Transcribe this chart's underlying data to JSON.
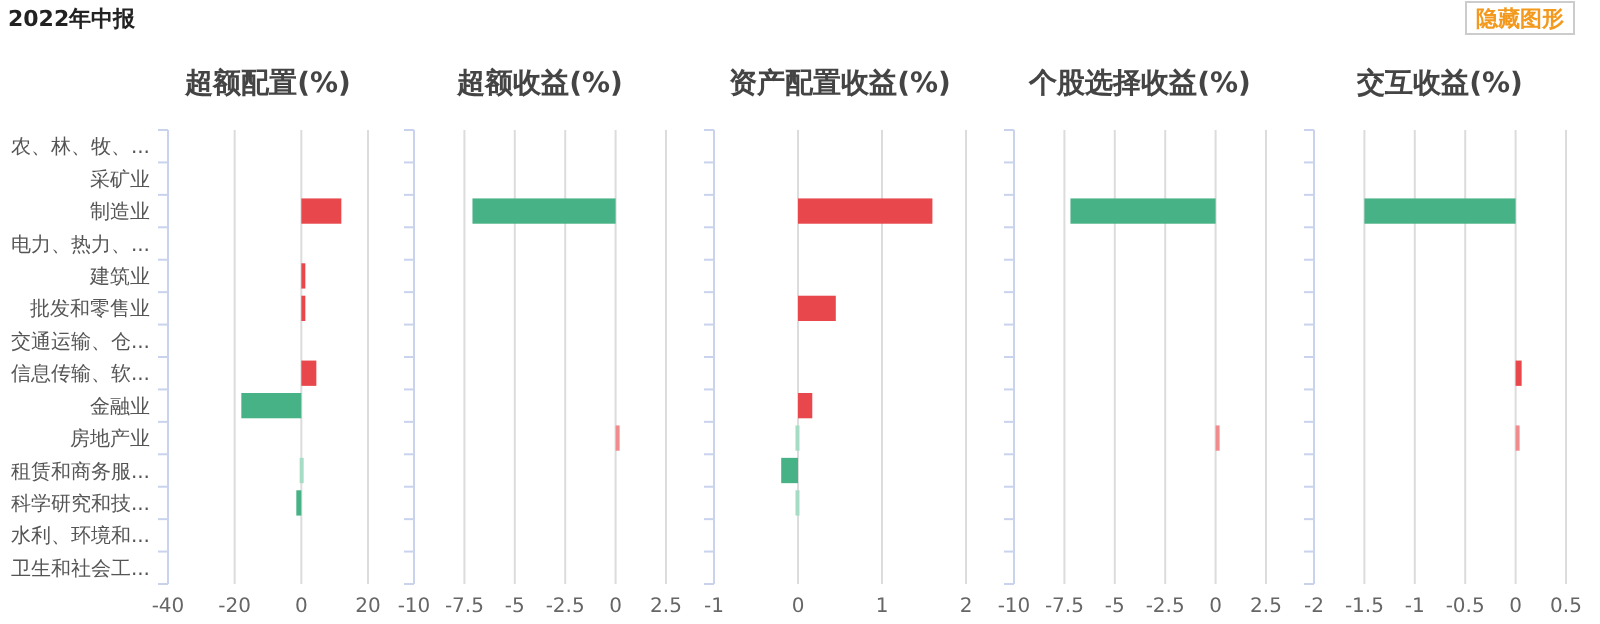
{
  "chart_data": [
    {
      "type": "bar",
      "orientation": "horizontal",
      "title": "超额配置(%)",
      "annotations": [
        "2022年中报"
      ],
      "tick_labels": "xy",
      "grid": "x",
      "categories": [
        "农、林、牧、...",
        "采矿业",
        "制造业",
        "电力、热力、...",
        "建筑业",
        "批发和零售业",
        "交通运输、仓...",
        "信息传输、软...",
        "金融业",
        "房地产业",
        "租赁和商务服...",
        "科学研究和技...",
        "水利、环境和...",
        "卫生和社会工..."
      ],
      "values": [
        null,
        null,
        12,
        null,
        1,
        1,
        null,
        4.5,
        -18,
        null,
        -0.5,
        -1.5,
        null,
        null
      ],
      "colors": [
        null,
        null,
        "#e8474b",
        null,
        "#e8474b",
        "#e8474b",
        null,
        "#e8474b",
        "#48b287",
        null,
        "#a6dcc5",
        "#48b287",
        null,
        null
      ],
      "xlim": [
        -40,
        20
      ],
      "xticks": [
        -40,
        -20,
        0,
        20
      ]
    },
    {
      "type": "bar",
      "orientation": "horizontal",
      "title": "超额收益(%)",
      "tick_labels": "x",
      "grid": "x",
      "categories": [
        null,
        null,
        null,
        null,
        null,
        null,
        null,
        null,
        null,
        null,
        null,
        null,
        null,
        null
      ],
      "values": [
        null,
        null,
        -7.1,
        null,
        null,
        null,
        null,
        null,
        null,
        0.2,
        null,
        null,
        null,
        null
      ],
      "colors": [
        null,
        null,
        "#48b287",
        null,
        null,
        null,
        null,
        null,
        null,
        "#f08c8e",
        null,
        null,
        null,
        null
      ],
      "xlim": [
        -10,
        2.5
      ],
      "xticks": [
        -10,
        -7.5,
        -5,
        -2.5,
        0,
        2.5
      ]
    },
    {
      "type": "bar",
      "orientation": "horizontal",
      "title": "资产配置收益(%)",
      "tick_labels": "x",
      "grid": "x",
      "categories": [
        null,
        null,
        null,
        null,
        null,
        null,
        null,
        null,
        null,
        null,
        null,
        null,
        null,
        null
      ],
      "values": [
        null,
        null,
        1.6,
        null,
        null,
        0.45,
        null,
        null,
        0.17,
        -0.03,
        -0.2,
        -0.03,
        null,
        null
      ],
      "colors": [
        null,
        null,
        "#e8474b",
        null,
        null,
        "#e8474b",
        null,
        null,
        "#e8474b",
        "#a6dcc5",
        "#48b287",
        "#a6dcc5",
        null,
        null
      ],
      "xlim": [
        -1,
        2
      ],
      "xticks": [
        -1,
        0,
        1,
        2
      ]
    },
    {
      "type": "bar",
      "orientation": "horizontal",
      "title": "个股选择收益(%)",
      "tick_labels": "x",
      "grid": "x",
      "categories": [
        null,
        null,
        null,
        null,
        null,
        null,
        null,
        null,
        null,
        null,
        null,
        null,
        null,
        null
      ],
      "values": [
        null,
        null,
        -7.2,
        null,
        null,
        null,
        null,
        null,
        null,
        0.1,
        null,
        null,
        null,
        null
      ],
      "colors": [
        null,
        null,
        "#48b287",
        null,
        null,
        null,
        null,
        null,
        null,
        "#f08c8e",
        null,
        null,
        null,
        null
      ],
      "xlim": [
        -10,
        2.5
      ],
      "xticks": [
        -10,
        -7.5,
        -5,
        -2.5,
        0,
        2.5
      ]
    },
    {
      "type": "bar",
      "orientation": "horizontal",
      "title": "交互收益(%)",
      "annotations": [
        "隐藏图形"
      ],
      "tick_labels": "x",
      "grid": "x",
      "categories": [
        null,
        null,
        null,
        null,
        null,
        null,
        null,
        null,
        null,
        null,
        null,
        null,
        null,
        null
      ],
      "values": [
        null,
        null,
        -1.5,
        null,
        null,
        null,
        null,
        0.06,
        null,
        0.02,
        null,
        null,
        null,
        null
      ],
      "colors": [
        null,
        null,
        "#48b287",
        null,
        null,
        null,
        null,
        "#e8474b",
        null,
        "#f08c8e",
        null,
        null,
        null,
        null
      ],
      "xlim": [
        -2,
        0.5
      ],
      "xticks": [
        -2,
        -1.5,
        -1,
        -0.5,
        0,
        0.5
      ]
    }
  ]
}
